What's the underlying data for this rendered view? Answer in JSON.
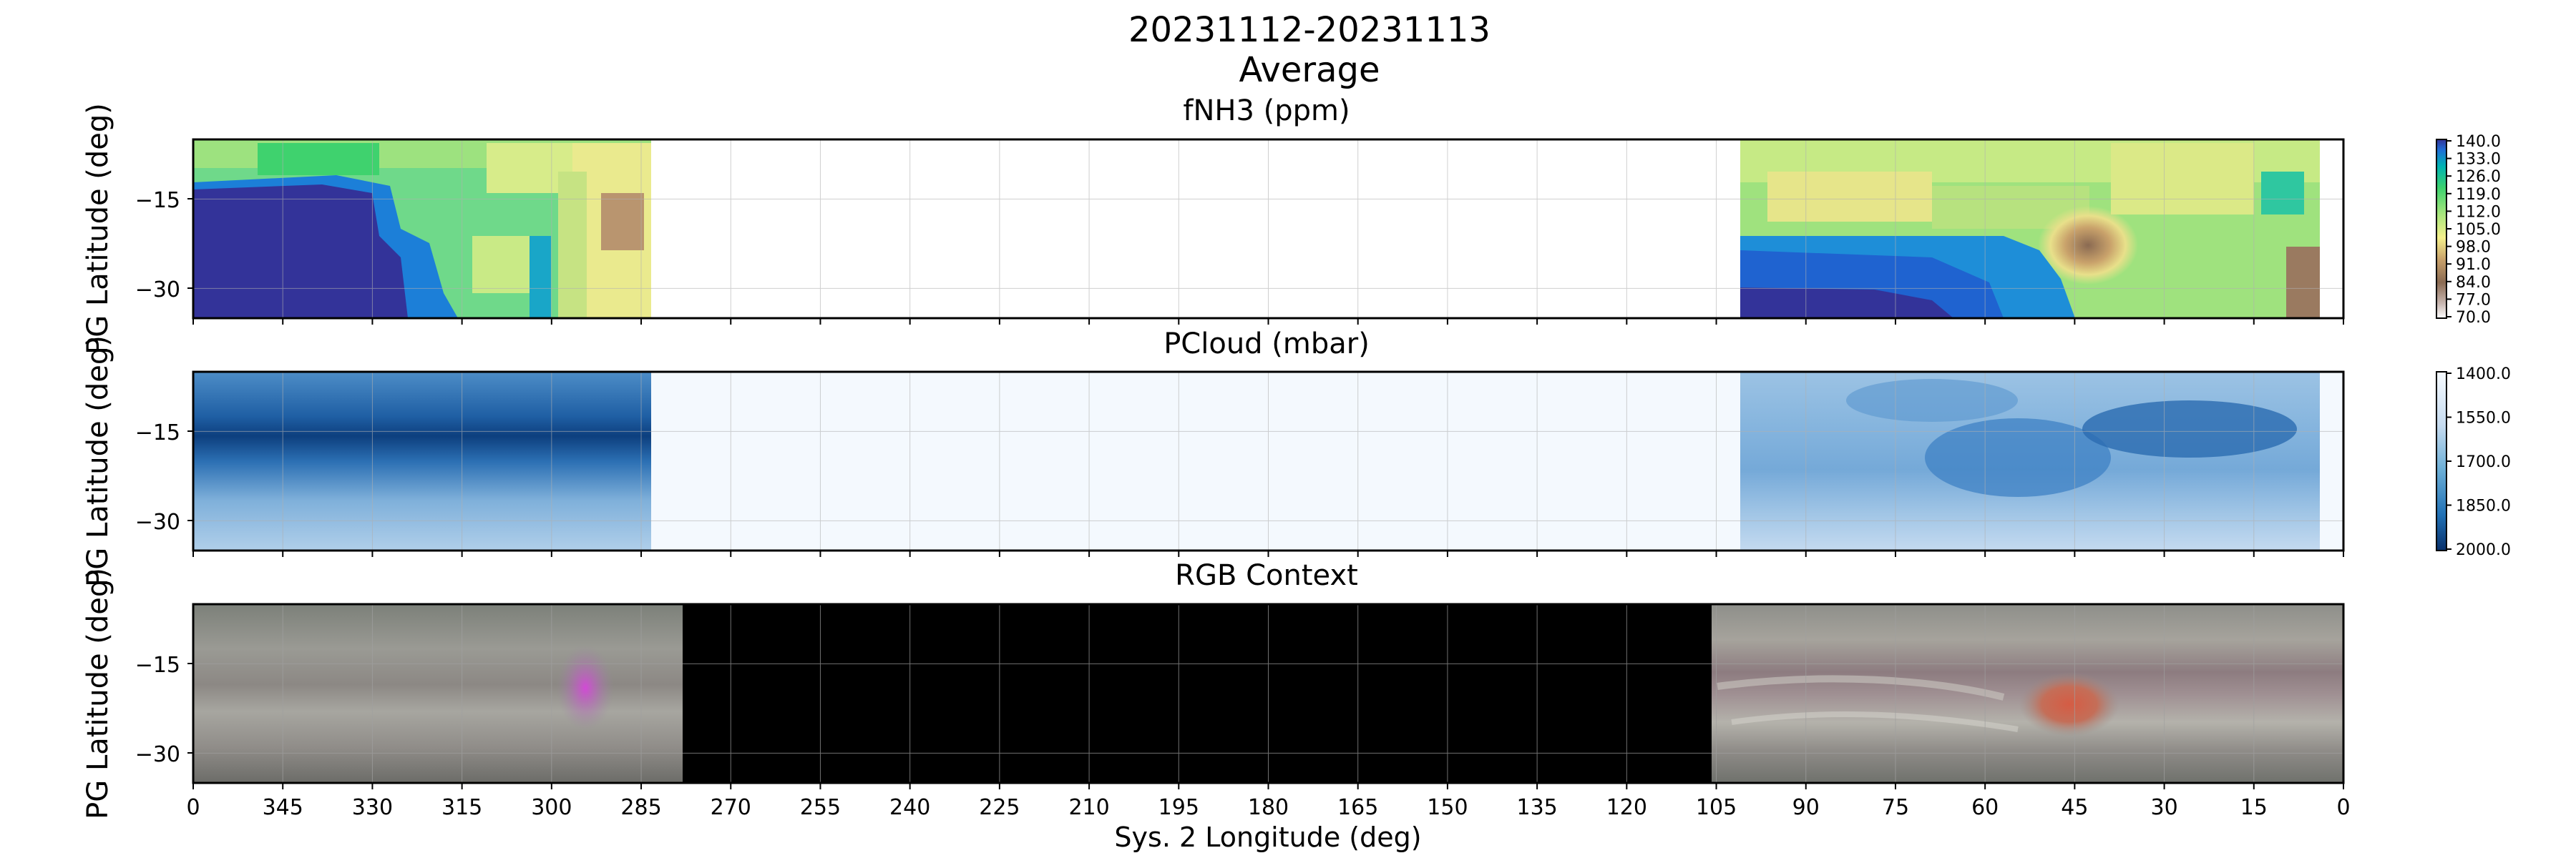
{
  "figure": {
    "title": "20231112-20231113",
    "subtitle": "Average",
    "xlabel": "Sys. 2 Longitude (deg)",
    "x_ticks": [
      "0",
      "345",
      "330",
      "315",
      "300",
      "285",
      "270",
      "255",
      "240",
      "225",
      "210",
      "195",
      "180",
      "165",
      "150",
      "135",
      "120",
      "105",
      "90",
      "75",
      "60",
      "45",
      "30",
      "15",
      "0"
    ]
  },
  "chart_data": [
    {
      "type": "heatmap",
      "title": "fNH3 (ppm)",
      "ylabel": "PG Latitude (deg)",
      "y_ticks": [
        "−15",
        "−30"
      ],
      "x_range_deg": [
        360,
        0
      ],
      "y_range_deg": [
        -35,
        -5
      ],
      "data_coverage_deg": [
        [
          360,
          283
        ],
        [
          101,
          4
        ]
      ],
      "colormap": "terrain_r",
      "colorbar_ticks": [
        "140.0",
        "133.0",
        "126.0",
        "119.0",
        "112.0",
        "105.0",
        "98.0",
        "91.0",
        "84.0",
        "77.0",
        "70.0"
      ],
      "colorbar_range": [
        70,
        140
      ],
      "features": [
        {
          "description": "low-latitude depleted-ammonia band (high values) on left",
          "lon_range": [
            360,
            325
          ],
          "lat_range": [
            -35,
            -12
          ],
          "value": 140
        },
        {
          "description": "oval feature",
          "lon": 43,
          "lat": -22,
          "value": 84
        }
      ]
    },
    {
      "type": "heatmap",
      "title": "PCloud (mbar)",
      "ylabel": "PG Latitude (deg)",
      "y_ticks": [
        "−15",
        "−30"
      ],
      "x_range_deg": [
        360,
        0
      ],
      "y_range_deg": [
        -35,
        -5
      ],
      "data_coverage_deg": [
        [
          360,
          283
        ],
        [
          101,
          4
        ]
      ],
      "colormap": "Blues_r",
      "colorbar_ticks": [
        "1400.0",
        "1550.0",
        "1700.0",
        "1850.0",
        "2000.0"
      ],
      "colorbar_range": [
        1400,
        2000
      ]
    },
    {
      "type": "heatmap",
      "title": "RGB Context",
      "ylabel": "PG Latitude (deg)",
      "y_ticks": [
        "−15",
        "−30"
      ],
      "x_range_deg": [
        360,
        0
      ],
      "y_range_deg": [
        -35,
        -5
      ],
      "data_coverage_deg": [
        [
          360,
          278
        ],
        [
          106,
          0
        ]
      ],
      "colormap": "rgb",
      "features": [
        {
          "description": "Great Red Spot",
          "lon": 45,
          "lat": -22
        }
      ]
    }
  ]
}
